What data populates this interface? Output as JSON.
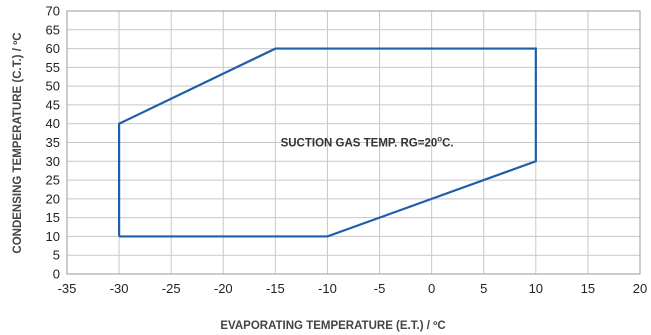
{
  "chart_data": {
    "type": "line",
    "xlabel": "EVAPORATING TEMPERATURE (E.T.) / ºC",
    "ylabel": "CONDENSING TEMPERATURE (C.T.) / ºC",
    "xlim": [
      -35,
      20
    ],
    "ylim": [
      0,
      70
    ],
    "xticks": [
      -35,
      -30,
      -25,
      -20,
      -15,
      -10,
      -5,
      0,
      5,
      10,
      15,
      20
    ],
    "yticks": [
      0,
      5,
      10,
      15,
      20,
      25,
      30,
      35,
      40,
      45,
      50,
      55,
      60,
      65,
      70
    ],
    "grid": true,
    "series": [
      {
        "x": [
          -30,
          -30,
          -15,
          10,
          10,
          -10,
          -30
        ],
        "y": [
          10,
          40,
          60,
          60,
          30,
          10,
          10
        ],
        "color": "#1f5ea8"
      }
    ],
    "annotations": [
      {
        "text": "SUCTION GAS TEMP. RG=20",
        "sup": "o",
        "suffix": "C.",
        "x": -14.5,
        "y": 35
      }
    ],
    "colors": {
      "grid": "#c8c8c8",
      "frame": "#9a9a9a",
      "series": "#1f5ea8"
    }
  }
}
